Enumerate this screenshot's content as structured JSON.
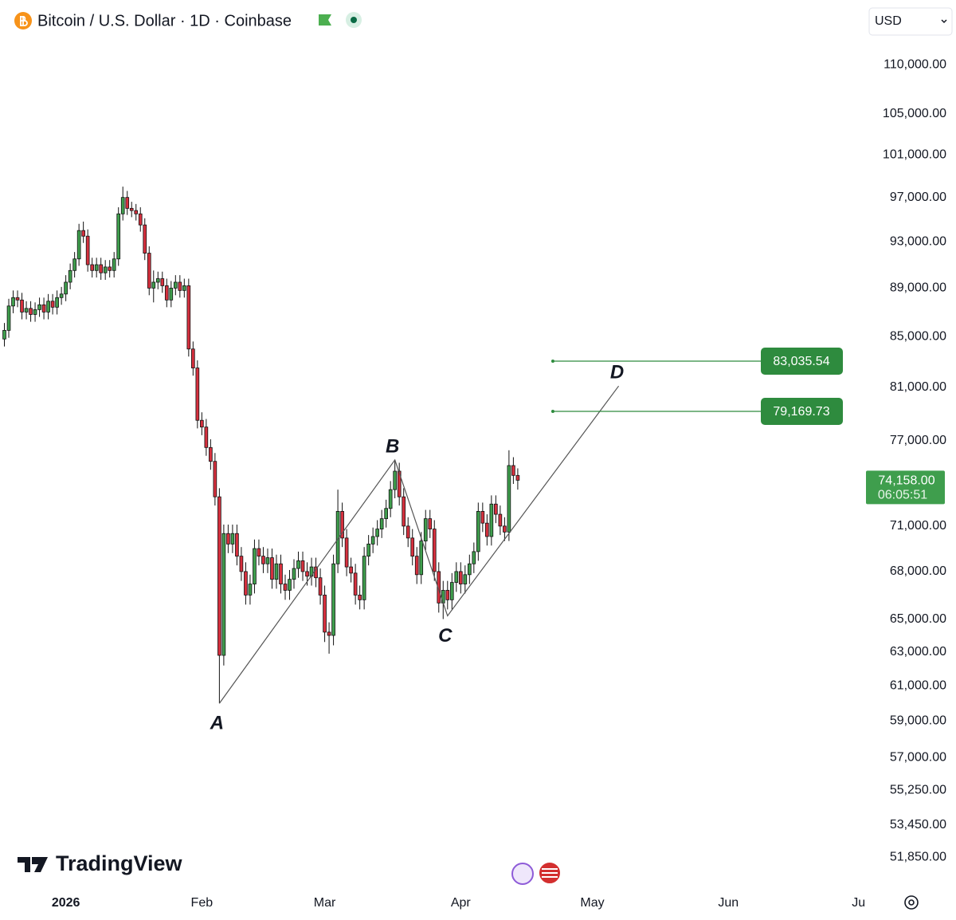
{
  "chart_data": {
    "type": "candlestick",
    "title": "Bitcoin / U.S. Dollar · 1D · Coinbase",
    "currency": "USD",
    "watermark": "TradingView",
    "log_scale": true,
    "up_color": "#3f9e4d",
    "down_color": "#d6303e",
    "wick_color": "#111111",
    "pattern_color": "#555555",
    "level_color": "#2e8b3e",
    "xlim": [
      "2025-12-17",
      "2026-07-02"
    ],
    "ylim": [
      50500,
      117000
    ],
    "xticks": [
      {
        "value": "2026-01-01",
        "label": "2026"
      },
      {
        "value": "2026-02-01",
        "label": "Feb"
      },
      {
        "value": "2026-03-01",
        "label": "Mar"
      },
      {
        "value": "2026-04-01",
        "label": "Apr"
      },
      {
        "value": "2026-05-01",
        "label": "May"
      },
      {
        "value": "2026-06-01",
        "label": "Jun"
      },
      {
        "value": "2026-07-01",
        "label": "Jul"
      }
    ],
    "yticks": [
      {
        "value": 110000,
        "label": "110,000.00"
      },
      {
        "value": 105000,
        "label": "105,000.00"
      },
      {
        "value": 101000,
        "label": "101,000.00"
      },
      {
        "value": 97000,
        "label": "97,000.00"
      },
      {
        "value": 93000,
        "label": "93,000.00"
      },
      {
        "value": 89000,
        "label": "89,000.00"
      },
      {
        "value": 85000,
        "label": "85,000.00"
      },
      {
        "value": 81000,
        "label": "81,000.00"
      },
      {
        "value": 77000,
        "label": "77,000.00"
      },
      {
        "value": 71000,
        "label": "71,000.00"
      },
      {
        "value": 68000,
        "label": "68,000.00"
      },
      {
        "value": 65000,
        "label": "65,000.00"
      },
      {
        "value": 63000,
        "label": "63,000.00"
      },
      {
        "value": 61000,
        "label": "61,000.00"
      },
      {
        "value": 59000,
        "label": "59,000.00"
      },
      {
        "value": 57000,
        "label": "57,000.00"
      },
      {
        "value": 55250,
        "label": "55,250.00"
      },
      {
        "value": 53450,
        "label": "53,450.00"
      },
      {
        "value": 51850,
        "label": "51,850.00"
      }
    ],
    "x": [
      "2025-12-18",
      "2025-12-19",
      "2025-12-20",
      "2025-12-21",
      "2025-12-22",
      "2025-12-23",
      "2025-12-24",
      "2025-12-25",
      "2025-12-26",
      "2025-12-27",
      "2025-12-28",
      "2025-12-29",
      "2025-12-30",
      "2025-12-31",
      "2026-01-01",
      "2026-01-02",
      "2026-01-03",
      "2026-01-04",
      "2026-01-05",
      "2026-01-06",
      "2026-01-07",
      "2026-01-08",
      "2026-01-09",
      "2026-01-10",
      "2026-01-11",
      "2026-01-12",
      "2026-01-13",
      "2026-01-14",
      "2026-01-15",
      "2026-01-16",
      "2026-01-17",
      "2026-01-18",
      "2026-01-19",
      "2026-01-20",
      "2026-01-21",
      "2026-01-22",
      "2026-01-23",
      "2026-01-24",
      "2026-01-25",
      "2026-01-26",
      "2026-01-27",
      "2026-01-28",
      "2026-01-29",
      "2026-01-30",
      "2026-01-31",
      "2026-02-01",
      "2026-02-02",
      "2026-02-03",
      "2026-02-04",
      "2026-02-05",
      "2026-02-06",
      "2026-02-07",
      "2026-02-08",
      "2026-02-09",
      "2026-02-10",
      "2026-02-11",
      "2026-02-12",
      "2026-02-13",
      "2026-02-14",
      "2026-02-15",
      "2026-02-16",
      "2026-02-17",
      "2026-02-18",
      "2026-02-19",
      "2026-02-20",
      "2026-02-21",
      "2026-02-22",
      "2026-02-23",
      "2026-02-24",
      "2026-02-25",
      "2026-02-26",
      "2026-02-27",
      "2026-02-28",
      "2026-03-01",
      "2026-03-02",
      "2026-03-03",
      "2026-03-04",
      "2026-03-05",
      "2026-03-06",
      "2026-03-07",
      "2026-03-08",
      "2026-03-09",
      "2026-03-10",
      "2026-03-11",
      "2026-03-12",
      "2026-03-13",
      "2026-03-14",
      "2026-03-15",
      "2026-03-16",
      "2026-03-17",
      "2026-03-18",
      "2026-03-19",
      "2026-03-20",
      "2026-03-21",
      "2026-03-22",
      "2026-03-23",
      "2026-03-24",
      "2026-03-25",
      "2026-03-26",
      "2026-03-27",
      "2026-03-28",
      "2026-03-29",
      "2026-03-30",
      "2026-03-31",
      "2026-04-01",
      "2026-04-02",
      "2026-04-03",
      "2026-04-04",
      "2026-04-05",
      "2026-04-06",
      "2026-04-07",
      "2026-04-08",
      "2026-04-09",
      "2026-04-10",
      "2026-04-11",
      "2026-04-12",
      "2026-04-13",
      "2026-04-14"
    ],
    "open": [
      84800,
      85500,
      87500,
      88200,
      88000,
      87000,
      87300,
      86800,
      87200,
      87600,
      87000,
      87900,
      87400,
      88200,
      88500,
      89500,
      90500,
      91500,
      94000,
      93500,
      91000,
      90500,
      91000,
      90300,
      90800,
      90500,
      91500,
      95500,
      97000,
      96000,
      95800,
      95500,
      94500,
      92000,
      89000,
      89500,
      89800,
      89200,
      88000,
      89000,
      89500,
      88800,
      89200,
      84000,
      82500,
      78500,
      78000,
      76500,
      75500,
      73000,
      62800,
      70500,
      69800,
      70500,
      69000,
      68000,
      66500,
      67200,
      69500,
      69000,
      68500,
      68900,
      67500,
      68500,
      67200,
      66800,
      67500,
      68200,
      68700,
      68000,
      67700,
      68300,
      67600,
      66500,
      64200,
      64000,
      68500,
      72000,
      70200,
      68300,
      67900,
      66500,
      66200,
      69000,
      69800,
      70300,
      70800,
      71500,
      72200,
      73500,
      74800,
      73000,
      71000,
      70200,
      69000,
      67800,
      70000,
      71500,
      70800,
      68000,
      66000,
      66800,
      66200,
      67300,
      68000,
      67200,
      67800,
      68500,
      69300,
      72000,
      71200,
      70300,
      72500,
      71800,
      71000,
      70600,
      75200,
      74500
    ],
    "high": [
      86100,
      88100,
      88800,
      88800,
      88600,
      87900,
      87900,
      87800,
      88200,
      88200,
      88500,
      88500,
      88800,
      89100,
      90100,
      91100,
      92100,
      94600,
      94800,
      94100,
      91600,
      91600,
      91600,
      91400,
      91400,
      92100,
      96100,
      98000,
      97600,
      96600,
      96400,
      96100,
      95100,
      92600,
      90500,
      90400,
      90400,
      89800,
      89600,
      90100,
      90100,
      89800,
      89800,
      84600,
      83100,
      79100,
      78600,
      77100,
      76100,
      73600,
      71100,
      71100,
      71100,
      71100,
      69600,
      68600,
      67800,
      70100,
      70100,
      69600,
      69500,
      69500,
      69100,
      69100,
      67800,
      68100,
      68800,
      69300,
      69300,
      68600,
      68900,
      68900,
      68200,
      67100,
      64800,
      69100,
      73500,
      72600,
      70800,
      68900,
      68500,
      67100,
      69600,
      70400,
      70900,
      71400,
      72100,
      72800,
      74100,
      75600,
      75400,
      73600,
      71600,
      70800,
      69600,
      70600,
      72100,
      72100,
      71400,
      68600,
      67400,
      67400,
      67900,
      68600,
      68600,
      68400,
      69100,
      69900,
      72600,
      72600,
      71800,
      73100,
      73100,
      72400,
      71600,
      76300,
      75800,
      75000
    ],
    "low": [
      84200,
      84900,
      86900,
      87400,
      86400,
      86400,
      86200,
      86200,
      86600,
      86400,
      86400,
      86800,
      86800,
      87600,
      87900,
      88900,
      89900,
      90900,
      92900,
      90400,
      89900,
      89900,
      89700,
      89700,
      89900,
      89900,
      90900,
      94900,
      95400,
      95200,
      94900,
      93900,
      91400,
      88400,
      87800,
      88900,
      88600,
      87400,
      87400,
      88400,
      88200,
      88200,
      83400,
      81900,
      77900,
      77400,
      75900,
      74900,
      72400,
      60000,
      62200,
      69200,
      69200,
      68400,
      67400,
      65900,
      65900,
      66600,
      68400,
      67900,
      67900,
      66900,
      66900,
      66600,
      66200,
      66200,
      66900,
      67600,
      67400,
      67100,
      67100,
      67000,
      65900,
      63600,
      62900,
      63400,
      67900,
      69600,
      67700,
      67300,
      65900,
      65600,
      65600,
      68400,
      69200,
      69700,
      70200,
      70900,
      71600,
      72900,
      72400,
      70400,
      69600,
      68400,
      67200,
      67200,
      69400,
      70200,
      67400,
      65400,
      65000,
      65600,
      65600,
      66700,
      66600,
      66600,
      67200,
      67900,
      68700,
      70600,
      69700,
      69700,
      71200,
      70400,
      70000,
      70000,
      73900,
      73500
    ],
    "close": [
      85500,
      87500,
      88200,
      88000,
      87000,
      87300,
      86800,
      87200,
      87600,
      87000,
      87900,
      87400,
      88200,
      88500,
      89500,
      90500,
      91500,
      94000,
      93500,
      91000,
      90500,
      91000,
      90300,
      90800,
      90500,
      91500,
      95500,
      97000,
      96000,
      95800,
      95500,
      94500,
      92000,
      89000,
      89500,
      89800,
      89200,
      88000,
      89000,
      89500,
      88800,
      89200,
      84000,
      82500,
      78500,
      78000,
      76500,
      75500,
      73000,
      62800,
      70500,
      69800,
      70500,
      69000,
      68000,
      66500,
      67200,
      69500,
      69000,
      68500,
      68900,
      67500,
      68500,
      67200,
      66800,
      67500,
      68200,
      68700,
      68000,
      67700,
      68300,
      67600,
      66500,
      64200,
      64000,
      68500,
      72000,
      70200,
      68300,
      67900,
      66500,
      66200,
      69000,
      69800,
      70300,
      70800,
      71500,
      72200,
      73500,
      74800,
      73000,
      71000,
      70200,
      69000,
      67800,
      70000,
      71500,
      70800,
      68000,
      66000,
      66800,
      66200,
      67300,
      68000,
      67200,
      67800,
      68500,
      69300,
      72000,
      71200,
      70300,
      72500,
      71800,
      71000,
      70600,
      75200,
      74500,
      74158
    ],
    "pattern": [
      {
        "label": "A",
        "x": "2026-02-05",
        "y": 60000
      },
      {
        "label": "B",
        "x": "2026-03-17",
        "y": 75600
      },
      {
        "label": "C",
        "x": "2026-03-29",
        "y": 65200
      },
      {
        "label": "D",
        "x": "2026-05-07",
        "y": 81100
      }
    ],
    "levels": [
      {
        "value": 83035.54,
        "label": "83,035.54",
        "start": "2026-04-22"
      },
      {
        "value": 79169.73,
        "label": "79,169.73",
        "start": "2026-04-22"
      }
    ],
    "last_price": {
      "value": 74158,
      "label": "74,158.00",
      "countdown": "06:05:51"
    }
  }
}
